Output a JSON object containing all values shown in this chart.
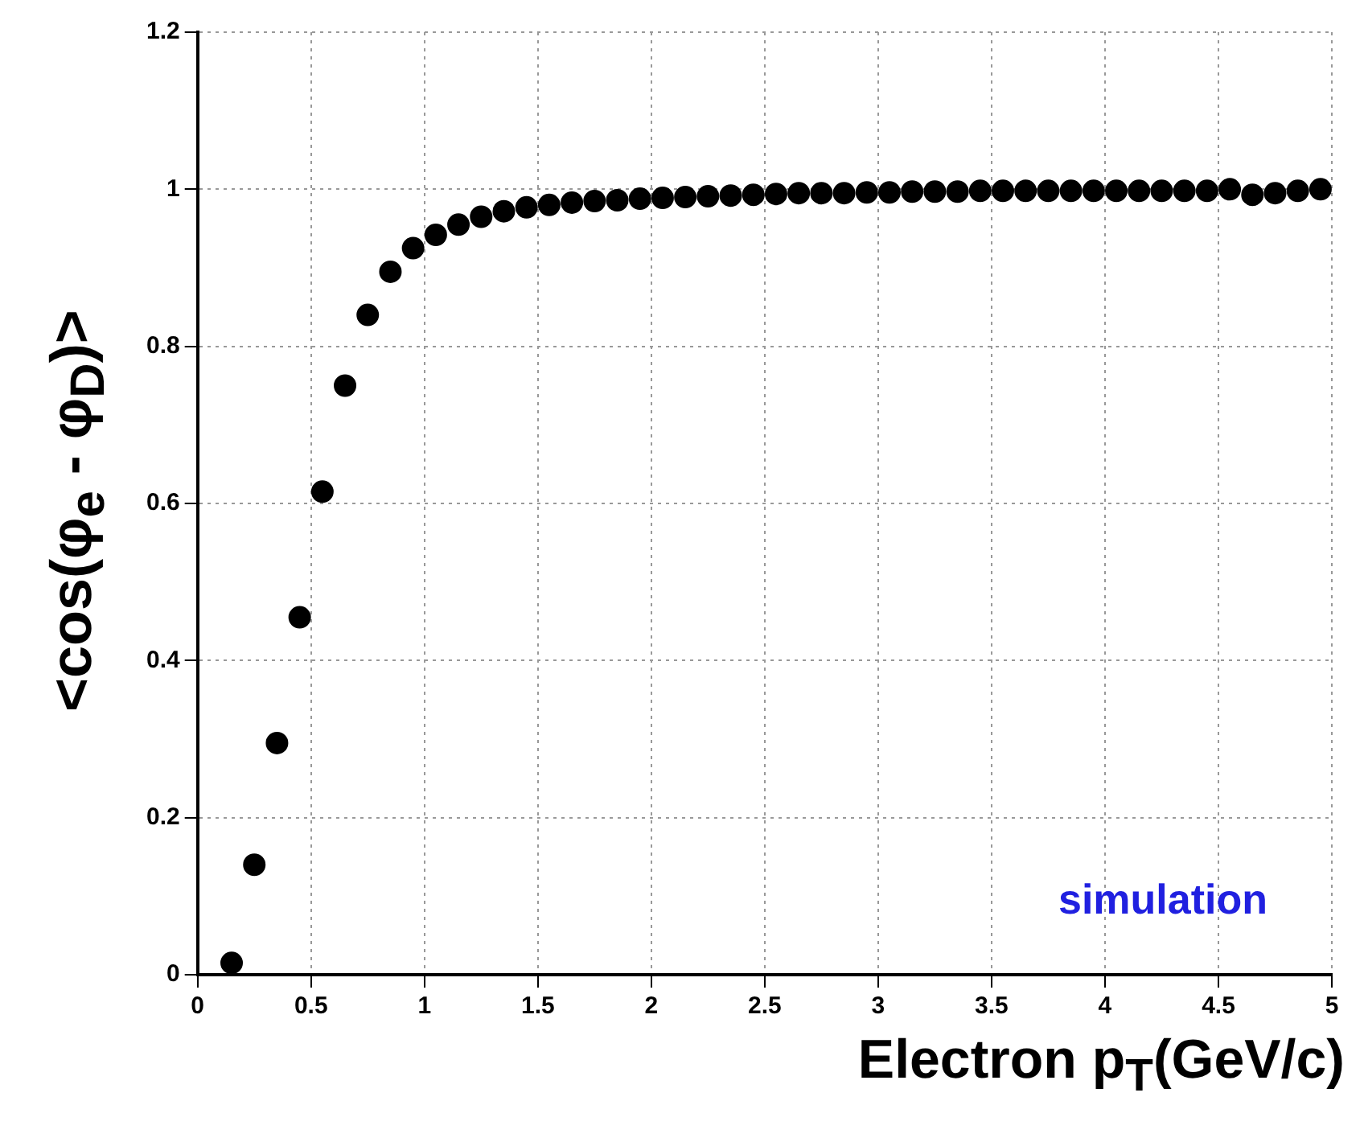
{
  "chart_data": {
    "type": "scatter",
    "xlabel": "Electron p$_{T}$(GeV/c)",
    "ylabel": "<cos(φ$_{e}$ - φ$_{D}$)>",
    "annotations": [
      "simulation"
    ],
    "x": [
      0.15,
      0.25,
      0.35,
      0.45,
      0.55,
      0.65,
      0.75,
      0.85,
      0.95,
      1.05,
      1.15,
      1.25,
      1.35,
      1.45,
      1.55,
      1.65,
      1.75,
      1.85,
      1.95,
      2.05,
      2.15,
      2.25,
      2.35,
      2.45,
      2.55,
      2.65,
      2.75,
      2.85,
      2.95,
      3.05,
      3.15,
      3.25,
      3.35,
      3.45,
      3.55,
      3.65,
      3.75,
      3.85,
      3.95,
      4.05,
      4.15,
      4.25,
      4.35,
      4.45,
      4.55,
      4.65,
      4.75,
      4.85,
      4.95
    ],
    "series": [
      {
        "color": "#000000",
        "values": [
          0.015,
          0.14,
          0.295,
          0.455,
          0.615,
          0.75,
          0.84,
          0.895,
          0.925,
          0.942,
          0.955,
          0.965,
          0.972,
          0.977,
          0.98,
          0.983,
          0.985,
          0.986,
          0.988,
          0.989,
          0.99,
          0.991,
          0.992,
          0.993,
          0.994,
          0.995,
          0.995,
          0.995,
          0.996,
          0.996,
          0.997,
          0.997,
          0.997,
          0.998,
          0.998,
          0.998,
          0.998,
          0.998,
          0.998,
          0.998,
          0.998,
          0.998,
          0.998,
          0.998,
          1.0,
          0.993,
          0.995,
          0.998,
          1.0
        ]
      }
    ],
    "xlim": [
      0,
      5
    ],
    "xticks": [
      0,
      0.5,
      1,
      1.5,
      2,
      2.5,
      3,
      3.5,
      4,
      4.5,
      5
    ],
    "ylim": [
      0,
      1.2
    ],
    "yticks": [
      0,
      0.2,
      0.4,
      0.6,
      0.8,
      1,
      1.2
    ],
    "grid": true,
    "marker": "circle",
    "legend": false
  }
}
